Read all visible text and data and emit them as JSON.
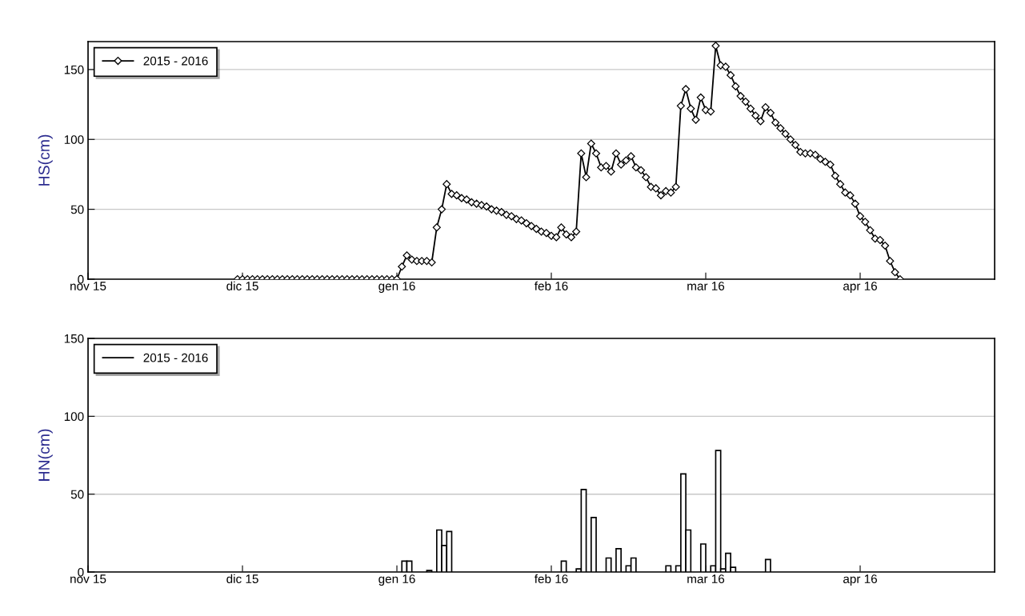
{
  "chart_data": [
    {
      "type": "line",
      "ylabel": "HS(cm)",
      "xlim": [
        "2015-11-01",
        "2016-05-01"
      ],
      "ylim": [
        0,
        170
      ],
      "yticks": [
        0,
        50,
        100,
        150
      ],
      "xticks": [
        {
          "value": "2015-11-01",
          "label": "nov 15"
        },
        {
          "value": "2015-12-02",
          "label": "dic 15"
        },
        {
          "value": "2016-01-02",
          "label": "gen 16"
        },
        {
          "value": "2016-02-02",
          "label": "feb 16"
        },
        {
          "value": "2016-03-04",
          "label": "mar 16"
        },
        {
          "value": "2016-04-04",
          "label": "apr 16"
        }
      ],
      "grid": "y",
      "legend": "top left",
      "marker": "diamond",
      "line_style": "solid",
      "series": [
        {
          "name": "2015 - 2016",
          "color": "#000000",
          "x": [
            "2015-12-01",
            "2015-12-02",
            "2015-12-03",
            "2015-12-04",
            "2015-12-05",
            "2015-12-06",
            "2015-12-07",
            "2015-12-08",
            "2015-12-09",
            "2015-12-10",
            "2015-12-11",
            "2015-12-12",
            "2015-12-13",
            "2015-12-14",
            "2015-12-15",
            "2015-12-16",
            "2015-12-17",
            "2015-12-18",
            "2015-12-19",
            "2015-12-20",
            "2015-12-21",
            "2015-12-22",
            "2015-12-23",
            "2015-12-24",
            "2015-12-25",
            "2015-12-26",
            "2015-12-27",
            "2015-12-28",
            "2015-12-29",
            "2015-12-30",
            "2015-12-31",
            "2016-01-01",
            "2016-01-02",
            "2016-01-03",
            "2016-01-04",
            "2016-01-05",
            "2016-01-06",
            "2016-01-07",
            "2016-01-08",
            "2016-01-09",
            "2016-01-10",
            "2016-01-11",
            "2016-01-12",
            "2016-01-13",
            "2016-01-14",
            "2016-01-15",
            "2016-01-16",
            "2016-01-17",
            "2016-01-18",
            "2016-01-19",
            "2016-01-20",
            "2016-01-21",
            "2016-01-22",
            "2016-01-23",
            "2016-01-24",
            "2016-01-25",
            "2016-01-26",
            "2016-01-27",
            "2016-01-28",
            "2016-01-29",
            "2016-01-30",
            "2016-01-31",
            "2016-02-01",
            "2016-02-02",
            "2016-02-03",
            "2016-02-04",
            "2016-02-05",
            "2016-02-06",
            "2016-02-07",
            "2016-02-08",
            "2016-02-09",
            "2016-02-10",
            "2016-02-11",
            "2016-02-12",
            "2016-02-13",
            "2016-02-14",
            "2016-02-15",
            "2016-02-16",
            "2016-02-17",
            "2016-02-18",
            "2016-02-19",
            "2016-02-20",
            "2016-02-21",
            "2016-02-22",
            "2016-02-23",
            "2016-02-24",
            "2016-02-25",
            "2016-02-26",
            "2016-02-27",
            "2016-02-28",
            "2016-02-29",
            "2016-03-01",
            "2016-03-02",
            "2016-03-03",
            "2016-03-04",
            "2016-03-05",
            "2016-03-06",
            "2016-03-07",
            "2016-03-08",
            "2016-03-09",
            "2016-03-10",
            "2016-03-11",
            "2016-03-12",
            "2016-03-13",
            "2016-03-14",
            "2016-03-15",
            "2016-03-16",
            "2016-03-17",
            "2016-03-18",
            "2016-03-19",
            "2016-03-20",
            "2016-03-21",
            "2016-03-22",
            "2016-03-23",
            "2016-03-24",
            "2016-03-25",
            "2016-03-26",
            "2016-03-27",
            "2016-03-28",
            "2016-03-29",
            "2016-03-30",
            "2016-03-31",
            "2016-04-01",
            "2016-04-02",
            "2016-04-03",
            "2016-04-04",
            "2016-04-05",
            "2016-04-06",
            "2016-04-07",
            "2016-04-08",
            "2016-04-09",
            "2016-04-10",
            "2016-04-11",
            "2016-04-12"
          ],
          "values": [
            0,
            0,
            0,
            0,
            0,
            0,
            0,
            0,
            0,
            0,
            0,
            0,
            0,
            0,
            0,
            0,
            0,
            0,
            0,
            0,
            0,
            0,
            0,
            0,
            0,
            0,
            0,
            0,
            0,
            0,
            0,
            0,
            0,
            9,
            17,
            14,
            13,
            13,
            13,
            12,
            37,
            50,
            68,
            61,
            60,
            58,
            57,
            55,
            54,
            53,
            52,
            50,
            49,
            48,
            46,
            45,
            43,
            42,
            40,
            38,
            36,
            34,
            33,
            31,
            30,
            37,
            32,
            30,
            34,
            90,
            73,
            97,
            90,
            80,
            81,
            77,
            90,
            82,
            85,
            88,
            80,
            78,
            73,
            66,
            65,
            60,
            63,
            62,
            66,
            124,
            136,
            122,
            114,
            130,
            121,
            120,
            167,
            153,
            152,
            146,
            138,
            131,
            127,
            122,
            117,
            113,
            123,
            119,
            112,
            108,
            104,
            100,
            96,
            91,
            90,
            90,
            89,
            86,
            84,
            82,
            74,
            68,
            62,
            60,
            54,
            45,
            41,
            35,
            29,
            28,
            24,
            13,
            5,
            0
          ]
        }
      ]
    },
    {
      "type": "bar",
      "ylabel": "HN(cm)",
      "xlim": [
        "2015-11-01",
        "2016-05-01"
      ],
      "ylim": [
        0,
        150
      ],
      "yticks": [
        0,
        50,
        100,
        150
      ],
      "xticks": [
        {
          "value": "2015-11-01",
          "label": "nov 15"
        },
        {
          "value": "2015-12-02",
          "label": "dic 15"
        },
        {
          "value": "2016-01-02",
          "label": "gen 16"
        },
        {
          "value": "2016-02-02",
          "label": "feb 16"
        },
        {
          "value": "2016-03-04",
          "label": "mar 16"
        },
        {
          "value": "2016-04-04",
          "label": "apr 16"
        }
      ],
      "grid": "y",
      "legend": "top left",
      "series": [
        {
          "name": "2015 - 2016",
          "color": "#000000",
          "x": [
            "2016-01-03",
            "2016-01-04",
            "2016-01-08",
            "2016-01-10",
            "2016-01-11",
            "2016-01-12",
            "2016-02-04",
            "2016-02-07",
            "2016-02-08",
            "2016-02-10",
            "2016-02-13",
            "2016-02-15",
            "2016-02-17",
            "2016-02-18",
            "2016-02-25",
            "2016-02-27",
            "2016-02-28",
            "2016-02-29",
            "2016-03-03",
            "2016-03-05",
            "2016-03-06",
            "2016-03-07",
            "2016-03-08",
            "2016-03-09",
            "2016-03-16"
          ],
          "values": [
            7,
            7,
            1,
            27,
            17,
            26,
            7,
            2,
            53,
            35,
            9,
            15,
            4,
            9,
            4,
            4,
            63,
            27,
            18,
            4,
            78,
            2,
            12,
            3,
            8
          ]
        }
      ]
    }
  ]
}
